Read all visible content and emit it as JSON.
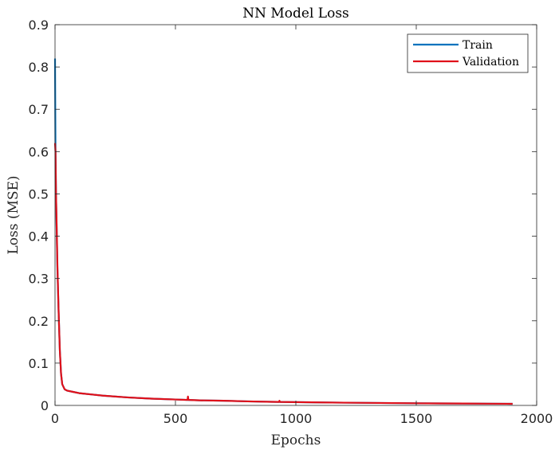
{
  "chart_data": {
    "type": "line",
    "title": "NN Model Loss",
    "xlabel": "Epochs",
    "ylabel": "Loss (MSE)",
    "xlim": [
      0,
      2000
    ],
    "ylim": [
      0,
      0.9
    ],
    "xticks": [
      0,
      500,
      1000,
      1500,
      2000
    ],
    "yticks": [
      0,
      0.1,
      0.2,
      0.3,
      0.4,
      0.5,
      0.6,
      0.7,
      0.8,
      0.9
    ],
    "legend_position": "top-right",
    "grid": false,
    "series": [
      {
        "name": "Train",
        "color": "#0072BD",
        "x": [
          0,
          1,
          2,
          3,
          4,
          6,
          8,
          10,
          15,
          20,
          25,
          30,
          40,
          50,
          75,
          100,
          150,
          200,
          300,
          400,
          500,
          600,
          700,
          800,
          900,
          1000,
          1100,
          1200,
          1300,
          1400,
          1500,
          1600,
          1700,
          1800,
          1900
        ],
        "y": [
          0.82,
          0.7,
          0.6,
          0.55,
          0.5,
          0.44,
          0.38,
          0.32,
          0.22,
          0.13,
          0.075,
          0.05,
          0.038,
          0.035,
          0.032,
          0.029,
          0.026,
          0.023,
          0.019,
          0.016,
          0.014,
          0.012,
          0.011,
          0.0095,
          0.0085,
          0.0078,
          0.0071,
          0.0065,
          0.006,
          0.0055,
          0.0051,
          0.0047,
          0.0044,
          0.0041,
          0.0038
        ]
      },
      {
        "name": "Validation",
        "color": "#E0101A",
        "x": [
          0,
          2,
          3,
          4,
          6,
          8,
          10,
          15,
          20,
          25,
          30,
          40,
          50,
          75,
          100,
          150,
          200,
          300,
          400,
          500,
          550,
          552,
          554,
          556,
          600,
          700,
          800,
          900,
          930,
          932,
          934,
          1000,
          1100,
          1200,
          1300,
          1400,
          1500,
          1600,
          1700,
          1800,
          1900
        ],
        "y": [
          0.62,
          0.6,
          0.55,
          0.5,
          0.45,
          0.39,
          0.33,
          0.22,
          0.13,
          0.075,
          0.05,
          0.038,
          0.035,
          0.032,
          0.029,
          0.026,
          0.023,
          0.019,
          0.016,
          0.014,
          0.013,
          0.021,
          0.013,
          0.013,
          0.012,
          0.011,
          0.0095,
          0.0085,
          0.0083,
          0.011,
          0.0083,
          0.0078,
          0.0071,
          0.0065,
          0.006,
          0.0055,
          0.0051,
          0.0047,
          0.0044,
          0.0041,
          0.0038
        ]
      }
    ]
  }
}
